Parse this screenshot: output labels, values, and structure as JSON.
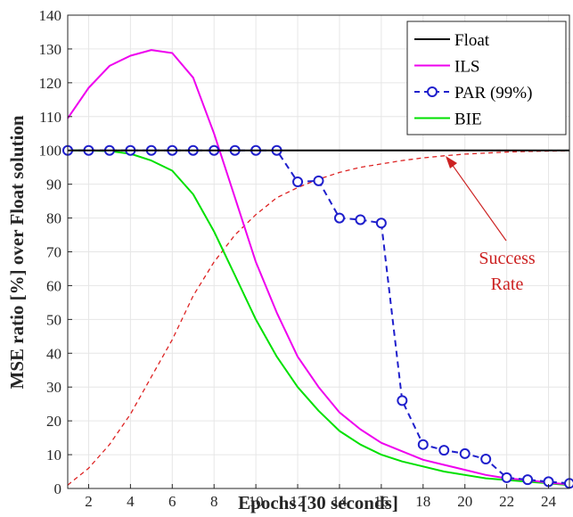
{
  "chart_data": {
    "type": "line",
    "xlabel": "Epochs [30 seconds]",
    "ylabel": "MSE ratio [%] over Float solution",
    "xlim": [
      1,
      25
    ],
    "ylim": [
      0,
      140
    ],
    "x_ticks": [
      2,
      4,
      6,
      8,
      10,
      12,
      14,
      16,
      18,
      20,
      22,
      24
    ],
    "y_ticks": [
      0,
      10,
      20,
      30,
      40,
      50,
      60,
      70,
      80,
      90,
      100,
      110,
      120,
      130,
      140
    ],
    "grid": true,
    "legend_position": "top-right",
    "series": [
      {
        "name": "Float",
        "color": "#000000",
        "style": "solid",
        "marker": "none",
        "x": [
          1,
          25
        ],
        "y": [
          100,
          100
        ]
      },
      {
        "name": "ILS",
        "color": "#ee00ee",
        "style": "solid",
        "marker": "none",
        "x": [
          1,
          2,
          3,
          4,
          5,
          6,
          7,
          8,
          9,
          10,
          11,
          12,
          13,
          14,
          15,
          16,
          17,
          18,
          19,
          20,
          21,
          22,
          23,
          24,
          25
        ],
        "y": [
          109.5,
          118.5,
          125,
          128,
          129.7,
          128.8,
          121.5,
          105,
          86,
          67,
          52,
          39,
          30,
          22.5,
          17.5,
          13.5,
          11,
          8.5,
          7,
          5.5,
          4,
          3,
          2.5,
          1.7,
          1.2
        ]
      },
      {
        "name": "PAR (99%)",
        "color": "#1f1fcc",
        "style": "dashed",
        "marker": "circle",
        "x": [
          1,
          2,
          3,
          4,
          5,
          6,
          7,
          8,
          9,
          10,
          11,
          12,
          13,
          14,
          15,
          16,
          17,
          18,
          19,
          20,
          21,
          22,
          23,
          24,
          25
        ],
        "y": [
          100,
          100,
          100,
          100,
          100,
          100,
          100,
          100,
          100,
          100,
          100,
          90.7,
          91,
          80,
          79.5,
          78.5,
          26,
          13,
          11.3,
          10.3,
          8.7,
          3.2,
          2.6,
          2,
          1.5
        ]
      },
      {
        "name": "BIE",
        "color": "#00e000",
        "style": "solid",
        "marker": "none",
        "x": [
          1,
          2,
          3,
          4,
          5,
          6,
          7,
          8,
          9,
          10,
          11,
          12,
          13,
          14,
          15,
          16,
          17,
          18,
          19,
          20,
          21,
          22,
          23,
          24,
          25
        ],
        "y": [
          100,
          100,
          99.8,
          99,
          97,
          94,
          87,
          76,
          63,
          50,
          39,
          30,
          23,
          17,
          13,
          10,
          8,
          6.5,
          5,
          4,
          3,
          2.5,
          2,
          1.5,
          1
        ]
      },
      {
        "color": "#dd2222",
        "style": "dashed-thin",
        "marker": "none",
        "x": [
          1,
          2,
          3,
          4,
          5,
          6,
          7,
          8,
          9,
          10,
          11,
          12,
          13,
          14,
          15,
          16,
          17,
          18,
          19,
          20,
          21,
          22,
          23,
          24,
          25
        ],
        "y": [
          1,
          6,
          13,
          22,
          33,
          44,
          57,
          67,
          75,
          81,
          86,
          89,
          91.5,
          93.5,
          95,
          96,
          97,
          97.8,
          98.4,
          98.9,
          99.2,
          99.5,
          99.7,
          99.8,
          99.9
        ]
      }
    ],
    "annotation": {
      "lines": [
        "Success",
        "Rate"
      ],
      "color": "#cc2222"
    }
  }
}
